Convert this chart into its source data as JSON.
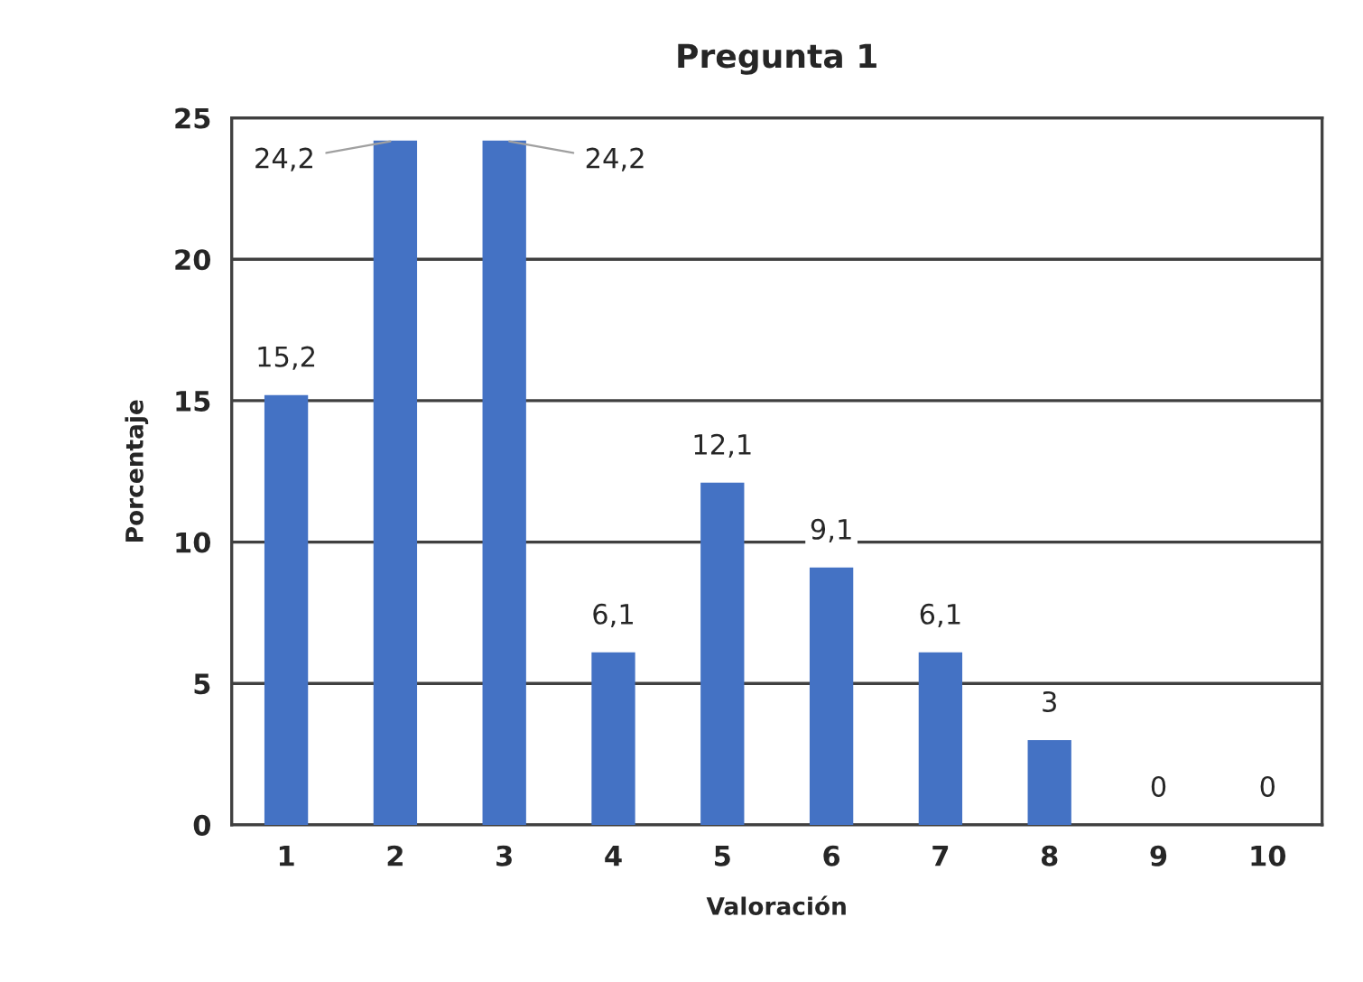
{
  "chart_data": {
    "type": "bar",
    "title": "Pregunta 1",
    "xlabel": "Valoración",
    "ylabel": "Porcentaje",
    "categories": [
      "1",
      "2",
      "3",
      "4",
      "5",
      "6",
      "7",
      "8",
      "9",
      "10"
    ],
    "values": [
      15.2,
      24.2,
      24.2,
      6.1,
      12.1,
      9.1,
      6.1,
      3,
      0,
      0
    ],
    "value_labels": [
      "15,2",
      "24,2",
      "24,2",
      "6,1",
      "12,1",
      "9,1",
      "6,1",
      "3",
      "0",
      "0"
    ],
    "color": "#4472c4",
    "ylim": [
      0,
      25
    ],
    "yticks": [
      0,
      5,
      10,
      15,
      20,
      25
    ],
    "grid": "y"
  }
}
